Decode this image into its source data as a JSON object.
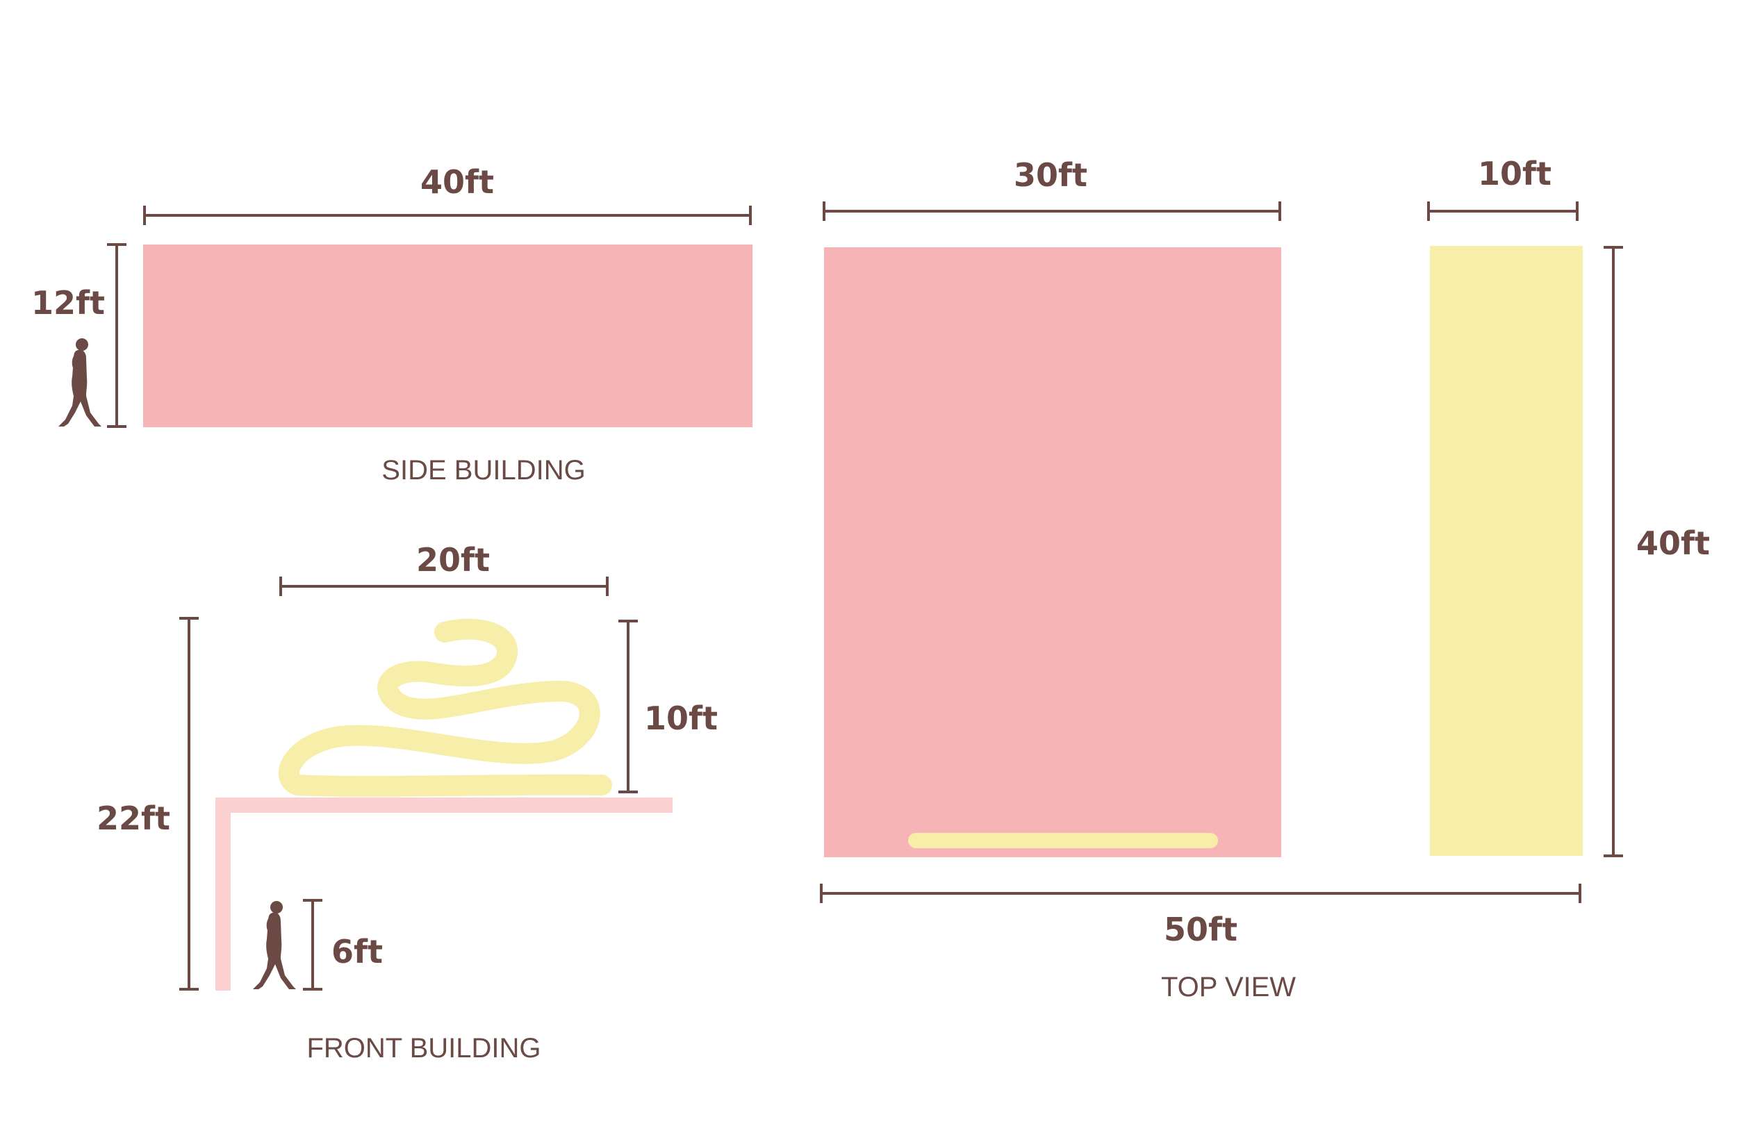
{
  "colors": {
    "pink": "#f7b4b6",
    "pink_light": "#fbd0d1",
    "yellow": "#f7eeaa",
    "brown": "#6b4a45"
  },
  "side_building": {
    "caption": "SIDE BUILDING",
    "width_label": "40ft",
    "height_label": "12ft",
    "icon": "person-walking-icon"
  },
  "front_building": {
    "caption": "FRONT BUILDING",
    "sculpture_width_label": "20ft",
    "sculpture_height_label": "10ft",
    "total_height_label": "22ft",
    "person_height_label": "6ft",
    "icon": "person-walking-icon"
  },
  "top_view": {
    "caption": "TOP VIEW",
    "building_width_label": "30ft",
    "strip_width_label": "10ft",
    "depth_label": "40ft",
    "total_width_label": "50ft"
  }
}
